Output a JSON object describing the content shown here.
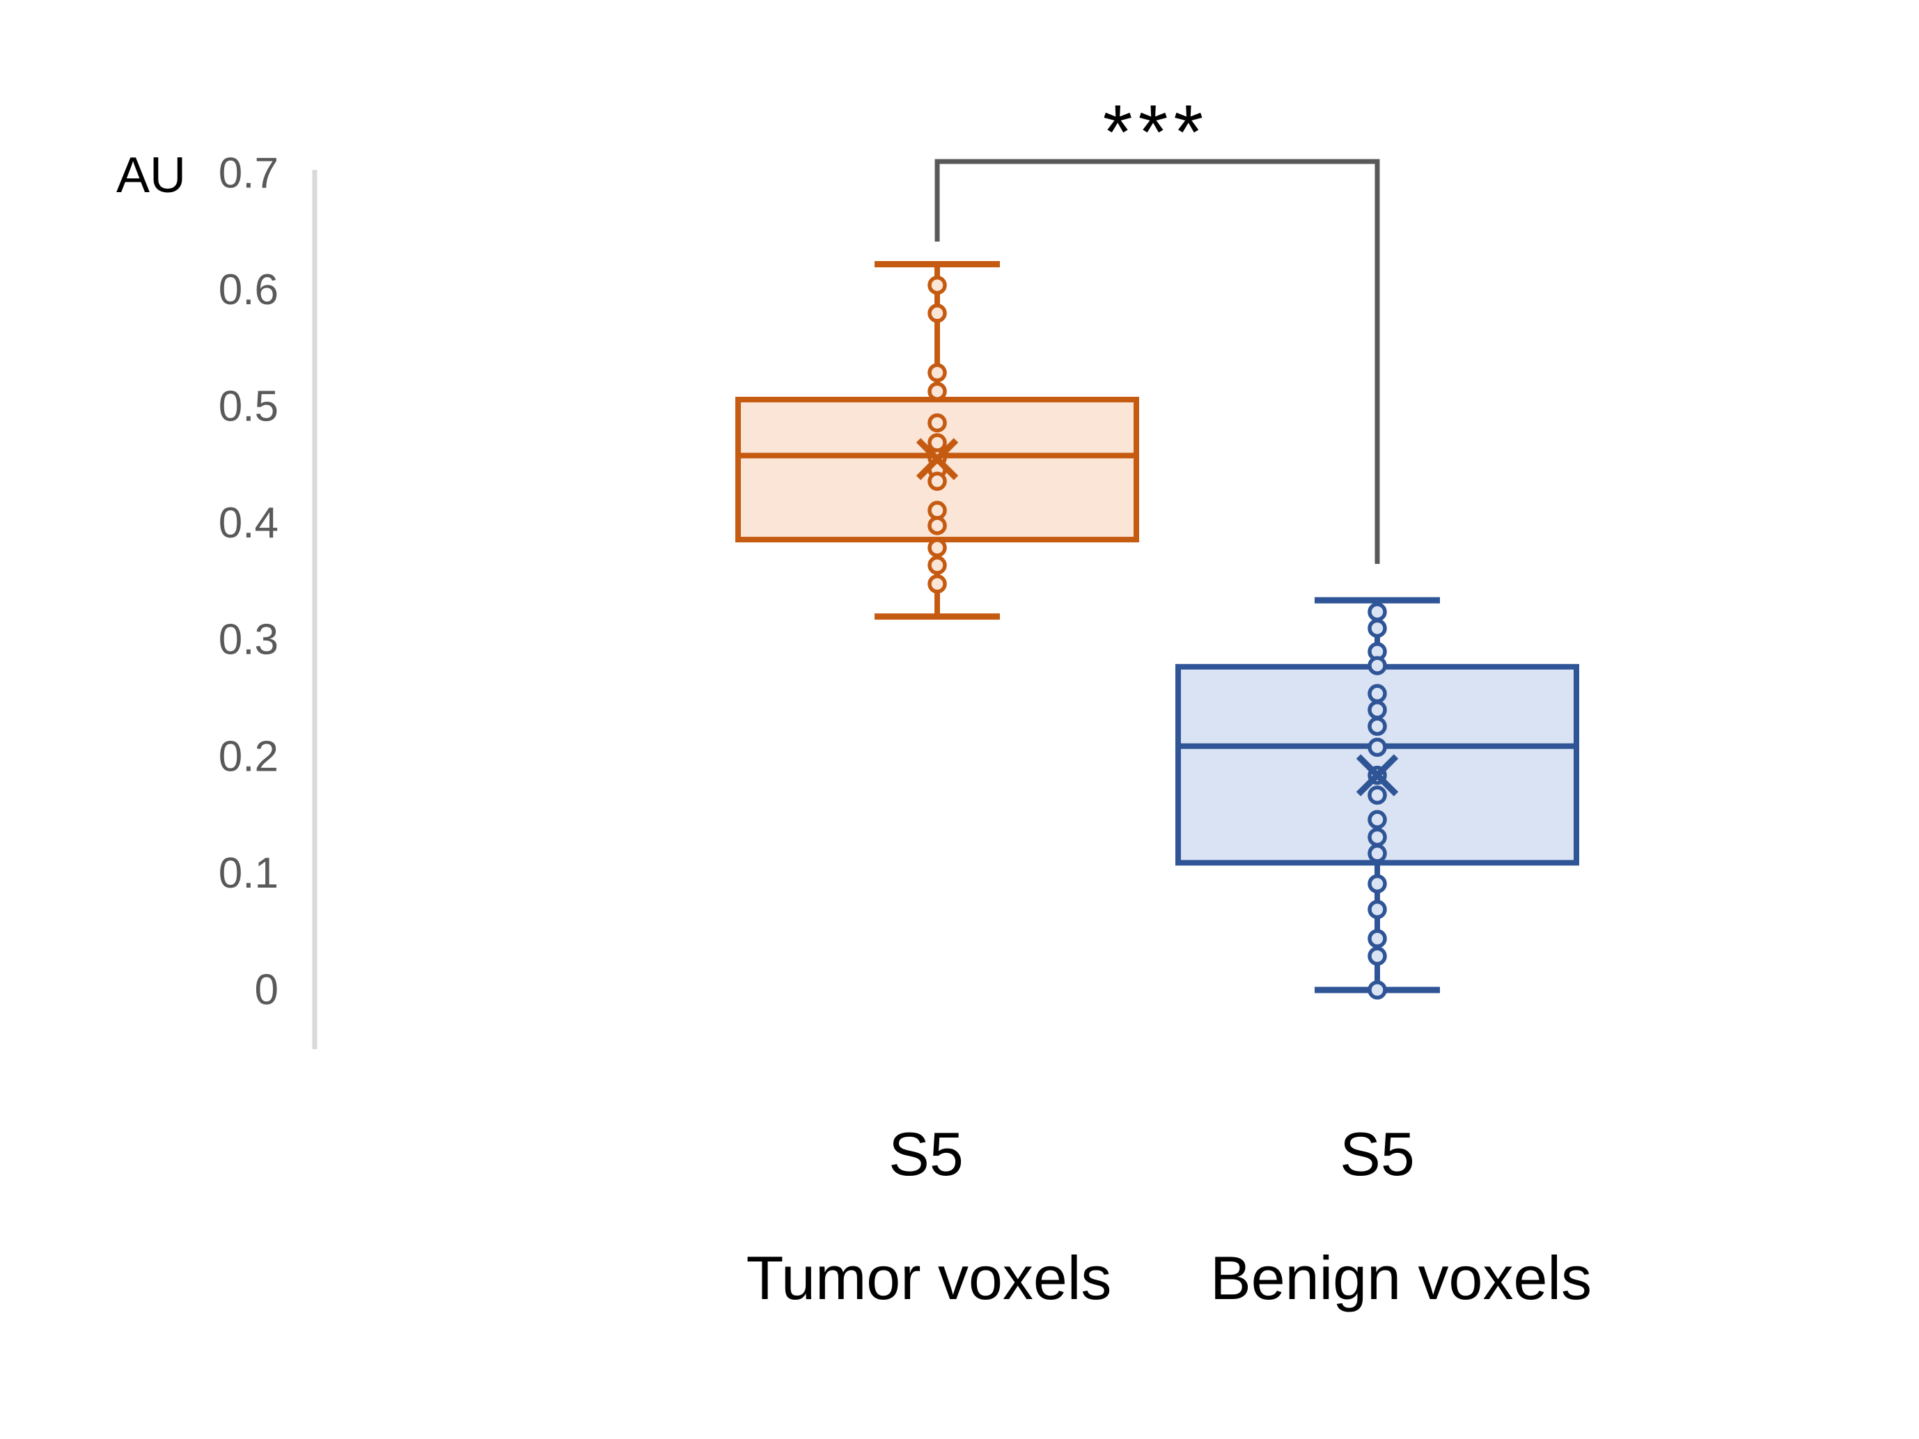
{
  "page": {
    "background": "#FFFFFF"
  },
  "chart_data": {
    "type": "box",
    "title": "",
    "ylabel": "AU",
    "yticks": [
      "0.7",
      "0.6",
      "0.5",
      "0.4",
      "0.3",
      "0.2",
      "0.1",
      "0"
    ],
    "ytick_values": [
      0.7,
      0.6,
      0.5,
      0.4,
      0.3,
      0.2,
      0.1,
      0
    ],
    "ylim": [
      0,
      0.7
    ],
    "grid": false,
    "legend": "none",
    "axis_color": "#D9D9D9",
    "tick_color": "#595959",
    "bracket_color": "#595959",
    "text_color": "#000000",
    "series": [
      {
        "name": "S5",
        "group_label": "Tumor voxels",
        "color": "#C55A11",
        "fill": "#FBE5D6",
        "box": {
          "whisker_low": 0.32,
          "q1": 0.386,
          "median": 0.458,
          "q3": 0.506,
          "whisker_high": 0.622,
          "mean": 0.455
        },
        "points": [
          0.604,
          0.58,
          0.529,
          0.513,
          0.486,
          0.469,
          0.456,
          0.446,
          0.436,
          0.411,
          0.398,
          0.379,
          0.364,
          0.348
        ]
      },
      {
        "name": "S5",
        "group_label": "Benign voxels",
        "color": "#2F5597",
        "fill": "#DAE3F3",
        "box": {
          "whisker_low": 0.0,
          "q1": 0.109,
          "median": 0.209,
          "q3": 0.277,
          "whisker_high": 0.334,
          "mean": 0.184
        },
        "points": [
          0.324,
          0.31,
          0.29,
          0.278,
          0.254,
          0.24,
          0.226,
          0.208,
          0.184,
          0.167,
          0.146,
          0.131,
          0.117,
          0.091,
          0.069,
          0.044,
          0.029,
          0.0
        ]
      }
    ],
    "significance": {
      "label": "***",
      "between": [
        "Tumor voxels",
        "Benign voxels"
      ]
    }
  }
}
